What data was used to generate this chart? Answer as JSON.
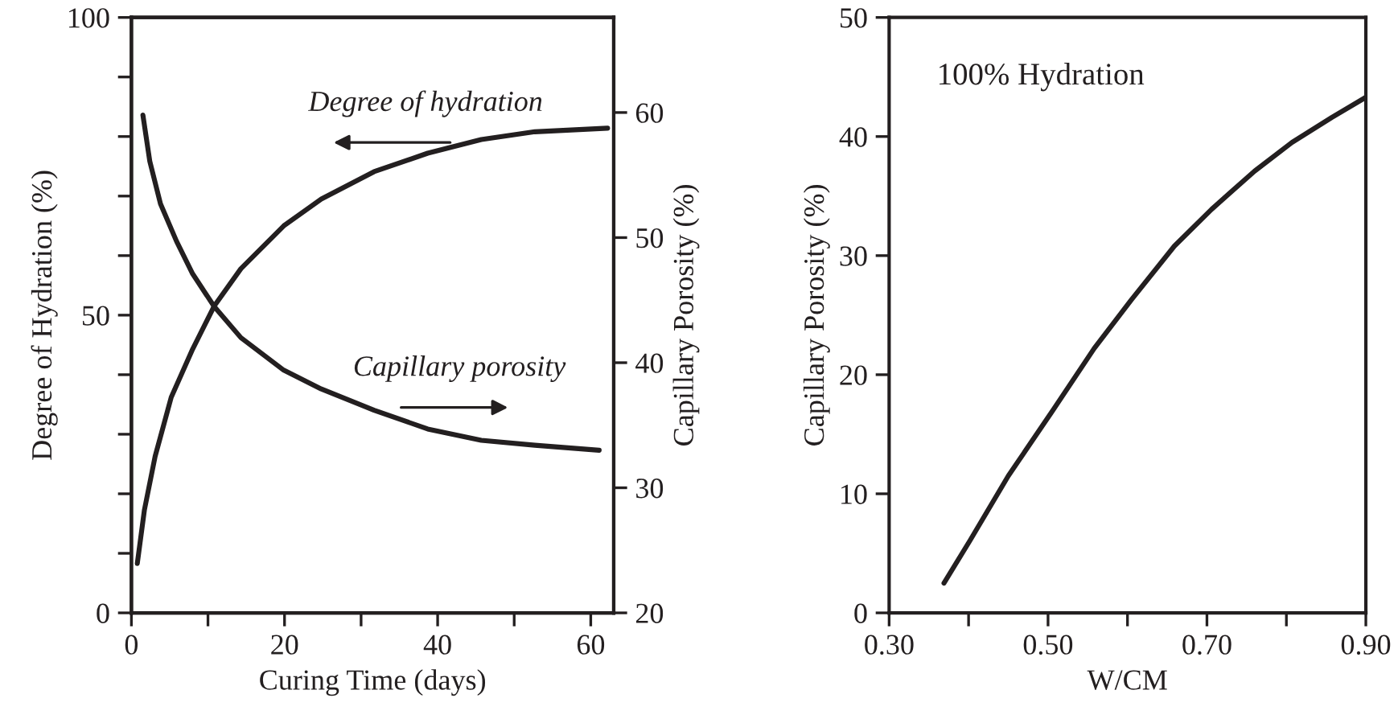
{
  "chart_data": [
    {
      "type": "line",
      "xlabel": "Curing Time (days)",
      "ylabel": "Degree of Hydration (%)",
      "y2label": "Capillary Porosity (%)",
      "series": [
        {
          "name": "Degree of hydration",
          "color": "#231f20",
          "x": [
            0.77,
            1.7,
            3.1,
            5.2,
            8.0,
            10.8,
            14.3,
            19.9,
            24.8,
            31.7,
            38.7,
            45.7,
            52.7,
            62.2
          ],
          "values": [
            8.3,
            17.3,
            26.3,
            36.2,
            44.3,
            51.5,
            57.8,
            65.0,
            69.5,
            74.1,
            77.2,
            79.5,
            80.8,
            81.4
          ]
        },
        {
          "name": "Capillary porosity",
          "color": "#231f20",
          "axis": "y2",
          "x": [
            1.5,
            2.4,
            3.8,
            5.9,
            8.0,
            10.8,
            14.3,
            19.9,
            24.8,
            31.7,
            38.7,
            45.7,
            52.7,
            61.1
          ],
          "values": [
            59.8,
            56.1,
            52.7,
            49.7,
            47.1,
            44.5,
            42.0,
            39.4,
            37.9,
            36.2,
            34.7,
            33.8,
            33.4,
            33.0
          ]
        }
      ],
      "xlim": [
        0,
        63
      ],
      "xticks": [
        0,
        {
          "value": 10,
          "label": null
        },
        20,
        {
          "value": 30,
          "label": null
        },
        40,
        {
          "value": 50,
          "label": null
        },
        60
      ],
      "ylim": [
        0,
        100
      ],
      "yticks": [
        0,
        {
          "value": 10,
          "label": null
        },
        {
          "value": 20,
          "label": null
        },
        {
          "value": 30,
          "label": null
        },
        {
          "value": 40,
          "label": null
        },
        50,
        {
          "value": 60,
          "label": null
        },
        {
          "value": 70,
          "label": null
        },
        {
          "value": 80,
          "label": null
        },
        {
          "value": 90,
          "label": null
        },
        100
      ],
      "y2lim": [
        20,
        67.6
      ],
      "y2ticks": [
        20,
        30,
        40,
        50,
        60
      ],
      "grid": false,
      "legend": false
    },
    {
      "type": "line",
      "xlabel": "W/CM",
      "ylabel": "Capillary Porosity (%)",
      "annotations": [
        "100% Hydration"
      ],
      "series": [
        {
          "color": "#231f20",
          "x": [
            0.369,
            0.402,
            0.45,
            0.504,
            0.558,
            0.605,
            0.659,
            0.706,
            0.76,
            0.807,
            0.857,
            0.9
          ],
          "values": [
            2.5,
            6.1,
            11.5,
            16.8,
            22.2,
            26.3,
            30.8,
            33.9,
            37.1,
            39.5,
            41.6,
            43.3
          ]
        }
      ],
      "xlim": [
        0.3,
        0.9
      ],
      "xticks": [
        {
          "value": 0.3,
          "label": "0.30"
        },
        {
          "value": 0.4,
          "label": null
        },
        {
          "value": 0.5,
          "label": "0.50"
        },
        {
          "value": 0.6,
          "label": null
        },
        {
          "value": 0.7,
          "label": "0.70"
        },
        {
          "value": 0.8,
          "label": null
        },
        {
          "value": 0.9,
          "label": "0.90"
        }
      ],
      "ylim": [
        0,
        50
      ],
      "yticks": [
        0,
        10,
        20,
        30,
        40,
        50
      ],
      "grid": false,
      "legend": false
    }
  ]
}
